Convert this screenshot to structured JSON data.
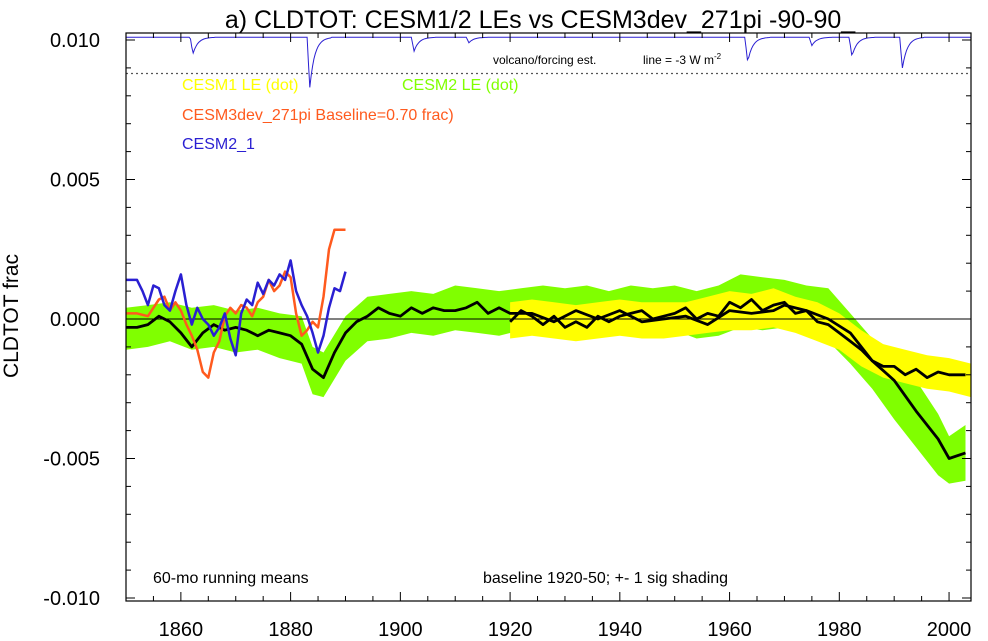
{
  "chart_data": {
    "type": "line",
    "title": "a) CLDTOT: CESM1/2 LEs vs CESM3dev_271pi -90-90_",
    "ylabel": "CLDTOT frac",
    "xlabel": "",
    "xlim": [
      1850,
      2004
    ],
    "ylim": [
      -0.01,
      0.0105
    ],
    "x_ticks": [
      1860,
      1880,
      1900,
      1920,
      1940,
      1960,
      1980,
      2000
    ],
    "y_ticks": [
      0.01,
      0.005,
      0.0,
      -0.005,
      -0.01
    ],
    "y_tick_labels": [
      "0.010",
      "0.005",
      "0.000",
      "-0.005",
      "-0.010"
    ],
    "zero_line": true,
    "grid": false,
    "legend_entries": [
      {
        "label": "CESM1 LE (dot)",
        "color": "#ffff00"
      },
      {
        "label": "CESM2 LE (dot)",
        "color": "#80ff00"
      },
      {
        "label": "CESM3dev_271pi Baseline=0.70 frac)",
        "color": "#ff5a1e"
      },
      {
        "label": "CESM2_1",
        "color": "#2a1fd2"
      }
    ],
    "annotations": {
      "volcano_label": "volcano/forcing est.",
      "line_label": "line = -3 W m",
      "line_label_sup": "-2",
      "running_mean": "60-mo running means",
      "baseline_note": "baseline 1920-50; +- 1 sig shading"
    },
    "volcano_reference_y": 0.0088,
    "volcano_dips": [
      {
        "year": 1883.5,
        "depth": 0.0018
      },
      {
        "year": 1862.2,
        "depth": 0.0006
      },
      {
        "year": 1902.5,
        "depth": 0.0005
      },
      {
        "year": 1963.3,
        "depth": 0.0009
      },
      {
        "year": 1982.3,
        "depth": 0.0007
      },
      {
        "year": 1991.5,
        "depth": 0.0011
      },
      {
        "year": 1975.0,
        "depth": 0.0003
      },
      {
        "year": 1912.5,
        "depth": 0.0002
      }
    ],
    "series": [
      {
        "name": "CESM2 LE (dot)",
        "kind": "band",
        "color": "#80ff00",
        "x": [
          1850,
          1854,
          1858,
          1862,
          1866,
          1870,
          1874,
          1878,
          1882,
          1884,
          1886,
          1890,
          1894,
          1898,
          1902,
          1906,
          1910,
          1914,
          1918,
          1922,
          1926,
          1930,
          1934,
          1938,
          1942,
          1946,
          1950,
          1954,
          1958,
          1962,
          1966,
          1970,
          1974,
          1978,
          1982,
          1986,
          1990,
          1994,
          1998,
          2000,
          2003
        ],
        "upper": [
          0.0004,
          0.0005,
          0.0006,
          0.0004,
          0.0005,
          0.0003,
          0.0004,
          0.0002,
          0.0001,
          -0.001,
          -0.0012,
          0.0001,
          0.0008,
          0.0009,
          0.001,
          0.0009,
          0.0012,
          0.0011,
          0.001,
          0.0011,
          0.0012,
          0.0011,
          0.0012,
          0.001,
          0.0012,
          0.0011,
          0.0012,
          0.001,
          0.0012,
          0.0016,
          0.0015,
          0.0014,
          0.0012,
          0.0011,
          0.0002,
          -0.0007,
          -0.0014,
          -0.0022,
          -0.0034,
          -0.0042,
          -0.0038
        ],
        "lower": [
          -0.0011,
          -0.001,
          -0.0008,
          -0.0011,
          -0.001,
          -0.0012,
          -0.0011,
          -0.0014,
          -0.0016,
          -0.0027,
          -0.0028,
          -0.0015,
          -0.0008,
          -0.0007,
          -0.0005,
          -0.0006,
          -0.0004,
          -0.0005,
          -0.0006,
          -0.0004,
          -0.0005,
          -0.0006,
          -0.0005,
          -0.0006,
          -0.0005,
          -0.0005,
          -0.0004,
          -0.0007,
          -0.0006,
          -0.0003,
          -0.0004,
          -0.0003,
          -0.0006,
          -0.0008,
          -0.0016,
          -0.0025,
          -0.0036,
          -0.0046,
          -0.0056,
          -0.0059,
          -0.0058
        ]
      },
      {
        "name": "CESM1 LE (dot)",
        "kind": "band",
        "color": "#ffff00",
        "x": [
          1920,
          1924,
          1928,
          1932,
          1936,
          1940,
          1944,
          1948,
          1952,
          1956,
          1960,
          1964,
          1968,
          1972,
          1976,
          1980,
          1984,
          1988,
          1992,
          1996,
          2000,
          2004
        ],
        "upper": [
          0.0006,
          0.0007,
          0.0006,
          0.0005,
          0.0006,
          0.0007,
          0.0006,
          0.0006,
          0.0006,
          0.0008,
          0.001,
          0.0009,
          0.0011,
          0.0008,
          0.0006,
          0.0002,
          -0.0004,
          -0.0009,
          -0.0011,
          -0.0013,
          -0.0014,
          -0.0016
        ],
        "lower": [
          -0.0007,
          -0.0006,
          -0.0007,
          -0.0008,
          -0.0007,
          -0.0006,
          -0.0007,
          -0.0007,
          -0.0006,
          -0.0005,
          -0.0004,
          -0.0004,
          -0.0003,
          -0.0005,
          -0.0008,
          -0.0011,
          -0.0017,
          -0.0021,
          -0.0023,
          -0.0025,
          -0.0026,
          -0.0028
        ]
      },
      {
        "name": "CESM2 LE mean",
        "kind": "line",
        "color": "#000000",
        "x": [
          1850,
          1852,
          1854,
          1856,
          1858,
          1860,
          1862,
          1864,
          1866,
          1868,
          1870,
          1872,
          1874,
          1876,
          1878,
          1880,
          1882,
          1884,
          1886,
          1888,
          1890,
          1892,
          1894,
          1896,
          1898,
          1900,
          1902,
          1904,
          1906,
          1908,
          1910,
          1912,
          1914,
          1916,
          1918,
          1920,
          1924,
          1928,
          1932,
          1936,
          1940,
          1944,
          1948,
          1952,
          1956,
          1960,
          1964,
          1968,
          1970,
          1974,
          1978,
          1982,
          1986,
          1990,
          1994,
          1998,
          2000,
          2003
        ],
        "y": [
          -0.0003,
          -0.0003,
          -0.0002,
          0.0001,
          -0.0001,
          -0.0005,
          -0.001,
          -0.0005,
          -0.0002,
          -0.0004,
          -0.0003,
          -0.0004,
          -0.0006,
          -0.0004,
          -0.0005,
          -0.0006,
          -0.0009,
          -0.0018,
          -0.0021,
          -0.0012,
          -0.0005,
          -0.0001,
          0.0001,
          0.0004,
          0.0002,
          0.0001,
          0.0004,
          0.0002,
          0.0004,
          0.0003,
          0.0003,
          0.0004,
          0.0006,
          0.0002,
          0.0004,
          0.0002,
          0.0002,
          -0.0001,
          0.0003,
          0.0,
          0.0003,
          -0.0001,
          0.0,
          0.0001,
          -0.0002,
          0.0003,
          0.0002,
          0.0003,
          0.0005,
          0.0003,
          0.0,
          -0.0005,
          -0.0015,
          -0.0022,
          -0.0033,
          -0.0043,
          -0.005,
          -0.0048
        ]
      },
      {
        "name": "CESM1 LE mean",
        "kind": "line",
        "color": "#000000",
        "x": [
          1920,
          1922,
          1924,
          1926,
          1928,
          1930,
          1932,
          1934,
          1936,
          1938,
          1940,
          1942,
          1944,
          1946,
          1948,
          1950,
          1952,
          1954,
          1956,
          1958,
          1960,
          1962,
          1964,
          1966,
          1968,
          1970,
          1972,
          1974,
          1976,
          1978,
          1980,
          1982,
          1984,
          1986,
          1988,
          1990,
          1992,
          1994,
          1996,
          1998,
          2000,
          2003
        ],
        "y": [
          -0.0001,
          0.0003,
          0.0001,
          -0.0002,
          0.0001,
          -0.0003,
          -0.0001,
          -0.0003,
          0.0001,
          -0.0001,
          0.0001,
          0.0002,
          0.0003,
          0.0,
          0.0001,
          0.0002,
          0.0004,
          0.0,
          0.0002,
          0.0001,
          0.0006,
          0.0004,
          0.0007,
          0.0003,
          0.0005,
          0.0006,
          0.0002,
          0.0003,
          -0.0001,
          -0.0002,
          -0.0005,
          -0.0008,
          -0.0011,
          -0.0015,
          -0.0017,
          -0.0017,
          -0.002,
          -0.0018,
          -0.0021,
          -0.0019,
          -0.002,
          -0.002
        ]
      },
      {
        "name": "CESM3dev_271pi",
        "kind": "line",
        "color": "#ff5a1e",
        "x": [
          1850,
          1852,
          1854,
          1856,
          1857,
          1858,
          1859,
          1860,
          1861,
          1862,
          1863,
          1864,
          1865,
          1866,
          1867,
          1868,
          1869,
          1870,
          1871,
          1872,
          1873,
          1874,
          1875,
          1876,
          1877,
          1878,
          1879,
          1880,
          1881,
          1882,
          1883,
          1884,
          1885,
          1886,
          1887,
          1888,
          1889,
          1890
        ],
        "y": [
          0.0002,
          0.0002,
          0.0001,
          0.0007,
          0.0008,
          0.0003,
          0.0006,
          0.0003,
          -0.0002,
          -0.0006,
          -0.0011,
          -0.0019,
          -0.0021,
          -0.0012,
          -0.0008,
          0.0001,
          0.0004,
          0.0002,
          0.0005,
          0.0004,
          0.0001,
          0.0006,
          0.0008,
          0.0014,
          0.001,
          0.0012,
          0.0017,
          0.0015,
          0.0002,
          -0.0006,
          -0.0004,
          -0.0001,
          -0.0003,
          0.0008,
          0.0025,
          0.0032,
          0.0032,
          0.0032
        ]
      },
      {
        "name": "CESM2_1",
        "kind": "line",
        "color": "#2a1fd2",
        "x": [
          1850,
          1852,
          1853,
          1854,
          1855,
          1856,
          1857,
          1858,
          1859,
          1860,
          1861,
          1862,
          1863,
          1864,
          1865,
          1866,
          1867,
          1868,
          1869,
          1870,
          1871,
          1872,
          1873,
          1874,
          1875,
          1876,
          1877,
          1878,
          1879,
          1880,
          1881,
          1882,
          1883,
          1884,
          1885,
          1886,
          1887,
          1888,
          1889,
          1890
        ],
        "y": [
          0.0014,
          0.0014,
          0.001,
          0.0005,
          0.0012,
          0.0011,
          0.0005,
          0.0003,
          0.001,
          0.0016,
          0.0005,
          -0.0002,
          0.0004,
          0.0,
          -0.0002,
          -0.0006,
          -0.0003,
          0.0002,
          -0.0007,
          -0.0013,
          0.0002,
          0.0007,
          0.0005,
          0.0013,
          0.0009,
          0.0014,
          0.0012,
          0.0016,
          0.0014,
          0.0021,
          0.001,
          0.0005,
          0.0001,
          -0.0005,
          -0.0012,
          -0.0006,
          0.0004,
          0.0011,
          0.001,
          0.0017
        ]
      }
    ]
  }
}
